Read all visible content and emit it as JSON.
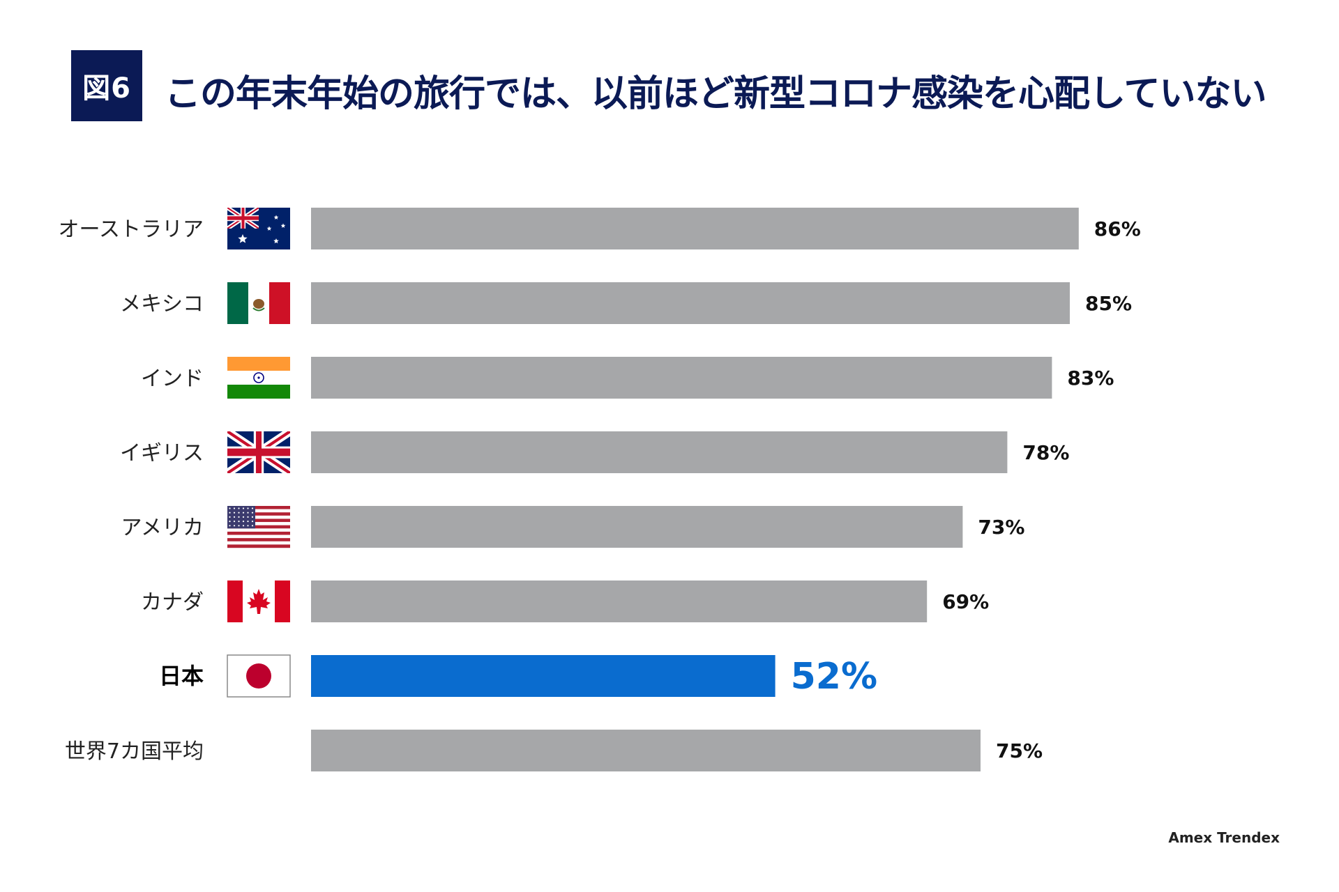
{
  "header": {
    "figure_label": "図6",
    "title": "この年末年始の旅行では、以前ほど新型コロナ感染を心配していない"
  },
  "source": "Amex Trendex",
  "colors": {
    "bar_default": "#a6a7a9",
    "bar_highlight": "#0a6ccf",
    "value_highlight": "#0a6ccf",
    "title_navy": "#0b1a55"
  },
  "chart_data": {
    "type": "bar",
    "orientation": "horizontal",
    "categories": [
      "オーストラリア",
      "メキシコ",
      "インド",
      "イギリス",
      "アメリカ",
      "カナダ",
      "日本",
      "世界7カ国平均"
    ],
    "flags": [
      "australia-flag",
      "mexico-flag",
      "india-flag",
      "uk-flag",
      "usa-flag",
      "canada-flag",
      "japan-flag",
      ""
    ],
    "values": [
      86,
      85,
      83,
      78,
      73,
      69,
      52,
      75
    ],
    "value_labels": [
      "86%",
      "85%",
      "83%",
      "78%",
      "73%",
      "69%",
      "52%",
      "75%"
    ],
    "highlight": "日本",
    "xlim": [
      0,
      100
    ],
    "grid": false,
    "title": "",
    "xlabel": "",
    "ylabel": ""
  }
}
